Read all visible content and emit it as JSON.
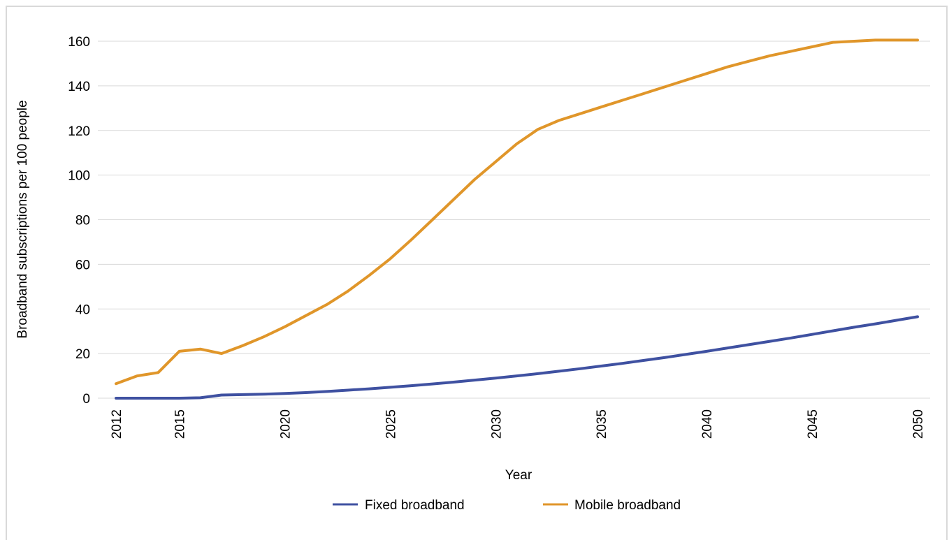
{
  "chart_data": {
    "type": "line",
    "xlabel": "Year",
    "ylabel": "Broadband subscriptions per 100 people",
    "ylim": [
      0,
      160
    ],
    "xlim": [
      2012,
      2050
    ],
    "y_ticks": [
      "0",
      "20",
      "40",
      "60",
      "80",
      "100",
      "120",
      "140",
      "160"
    ],
    "x_ticks": [
      "2012",
      "2015",
      "2020",
      "2025",
      "2030",
      "2035",
      "2040",
      "2045",
      "2050"
    ],
    "grid": "horizontal",
    "legend_placement": "bottom-center",
    "series": [
      {
        "name": "Fixed broadband",
        "color": "#3f51a1",
        "x": [
          2012,
          2013,
          2014,
          2015,
          2016,
          2017,
          2018,
          2019,
          2020,
          2021,
          2022,
          2023,
          2024,
          2025,
          2026,
          2027,
          2028,
          2029,
          2030,
          2031,
          2032,
          2033,
          2034,
          2035,
          2036,
          2037,
          2038,
          2039,
          2040,
          2041,
          2042,
          2043,
          2044,
          2045,
          2046,
          2047,
          2048,
          2049,
          2050
        ],
        "values": [
          0,
          0,
          0,
          0,
          0.2,
          1.4,
          1.6,
          1.8,
          2.1,
          2.5,
          3.0,
          3.6,
          4.2,
          4.9,
          5.6,
          6.4,
          7.2,
          8.1,
          9.0,
          10.0,
          11.0,
          12.1,
          13.2,
          14.4,
          15.6,
          16.9,
          18.2,
          19.6,
          21.0,
          22.5,
          24.0,
          25.5,
          27.0,
          28.6,
          30.2,
          31.8,
          33.3,
          34.9,
          36.5
        ]
      },
      {
        "name": "Mobile broadband",
        "color": "#e0962a",
        "x": [
          2012,
          2013,
          2014,
          2015,
          2016,
          2017,
          2018,
          2019,
          2020,
          2021,
          2022,
          2023,
          2024,
          2025,
          2026,
          2027,
          2028,
          2029,
          2030,
          2031,
          2032,
          2033,
          2034,
          2035,
          2036,
          2037,
          2038,
          2039,
          2040,
          2041,
          2042,
          2043,
          2044,
          2045,
          2046,
          2047,
          2048,
          2049,
          2050
        ],
        "values": [
          6.5,
          10,
          11.5,
          21,
          22,
          20,
          23.5,
          27.5,
          32,
          37,
          42,
          48,
          55,
          62.5,
          71,
          80,
          89,
          98,
          106,
          114,
          120.5,
          124.5,
          127.5,
          130.5,
          133.5,
          136.5,
          139.5,
          142.5,
          145.5,
          148.5,
          151,
          153.5,
          155.5,
          157.5,
          159.5,
          160,
          160.5,
          160.5,
          160.5
        ]
      }
    ]
  }
}
